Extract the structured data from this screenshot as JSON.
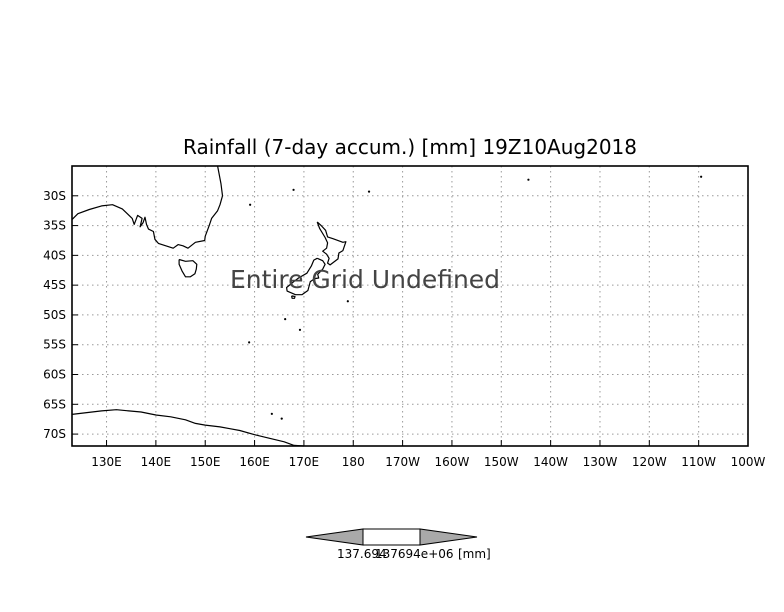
{
  "map": {
    "title": "Rainfall (7-day accum.) [mm] 19Z10Aug2018",
    "message": "Entire Grid Undefined",
    "projection": "latlon",
    "extent": {
      "lon_min": 123,
      "lon_max": 260,
      "lat_min": -72,
      "lat_max": -25
    },
    "grid": true,
    "lat_ticks": [
      {
        "value": -30,
        "label": "30S"
      },
      {
        "value": -35,
        "label": "35S"
      },
      {
        "value": -40,
        "label": "40S"
      },
      {
        "value": -45,
        "label": "45S"
      },
      {
        "value": -50,
        "label": "50S"
      },
      {
        "value": -55,
        "label": "55S"
      },
      {
        "value": -60,
        "label": "60S"
      },
      {
        "value": -65,
        "label": "65S"
      },
      {
        "value": -70,
        "label": "70S"
      }
    ],
    "lon_ticks": [
      {
        "value": 130,
        "label": "130E"
      },
      {
        "value": 140,
        "label": "140E"
      },
      {
        "value": 150,
        "label": "150E"
      },
      {
        "value": 160,
        "label": "160E"
      },
      {
        "value": 170,
        "label": "170E"
      },
      {
        "value": 180,
        "label": "180"
      },
      {
        "value": 190,
        "label": "170W"
      },
      {
        "value": 200,
        "label": "160W"
      },
      {
        "value": 210,
        "label": "150W"
      },
      {
        "value": 220,
        "label": "140W"
      },
      {
        "value": 230,
        "label": "130W"
      },
      {
        "value": 240,
        "label": "120W"
      },
      {
        "value": 250,
        "label": "110W"
      },
      {
        "value": 260,
        "label": "100W"
      }
    ],
    "colors": {
      "coast": "#000000",
      "grid": "#9a9a9a",
      "cb_fill": "#a9a9a9"
    }
  },
  "colorbar": {
    "label_left": "137.694",
    "label_mid": "137694e+06",
    "units": "[mm]"
  },
  "coastlines": {
    "australia": [
      [
        152.5,
        -25
      ],
      [
        153.2,
        -28
      ],
      [
        153.5,
        -30
      ],
      [
        153,
        -31.5
      ],
      [
        152.5,
        -32.5
      ],
      [
        151.3,
        -33.8
      ],
      [
        150.8,
        -35
      ],
      [
        150,
        -36.8
      ],
      [
        149.9,
        -37.5
      ],
      [
        148,
        -37.8
      ],
      [
        146.5,
        -38.8
      ],
      [
        145.5,
        -38.4
      ],
      [
        144.5,
        -38.2
      ],
      [
        143.5,
        -38.8
      ],
      [
        142,
        -38.4
      ],
      [
        140.5,
        -38
      ],
      [
        139.8,
        -37.3
      ],
      [
        139.5,
        -36
      ],
      [
        138.5,
        -35.6
      ],
      [
        138.1,
        -34.8
      ],
      [
        137.8,
        -33.6
      ],
      [
        137.4,
        -34.5
      ],
      [
        136.8,
        -35.2
      ],
      [
        137.2,
        -33.8
      ],
      [
        136.3,
        -33.3
      ],
      [
        135.6,
        -34.8
      ],
      [
        135.2,
        -33.8
      ],
      [
        134.2,
        -33
      ],
      [
        133.2,
        -32.2
      ],
      [
        131.2,
        -31.5
      ],
      [
        129,
        -31.7
      ],
      [
        126.5,
        -32.3
      ],
      [
        124.2,
        -33
      ],
      [
        123,
        -34
      ]
    ],
    "tasmania": [
      [
        144.7,
        -40.7
      ],
      [
        146,
        -41
      ],
      [
        147.5,
        -40.9
      ],
      [
        148.3,
        -41.5
      ],
      [
        148.2,
        -42.3
      ],
      [
        147.9,
        -43.1
      ],
      [
        147,
        -43.6
      ],
      [
        146,
        -43.6
      ],
      [
        145.3,
        -42.6
      ],
      [
        144.7,
        -41.5
      ],
      [
        144.7,
        -40.7
      ]
    ],
    "nz_north": [
      [
        172.7,
        -34.4
      ],
      [
        173.5,
        -35
      ],
      [
        174.4,
        -35.8
      ],
      [
        174.8,
        -36.9
      ],
      [
        175.9,
        -37.2
      ],
      [
        177.9,
        -37.8
      ],
      [
        178.5,
        -37.7
      ],
      [
        177.9,
        -39.2
      ],
      [
        177.1,
        -39.6
      ],
      [
        176.9,
        -40.6
      ],
      [
        175.3,
        -41.6
      ],
      [
        174.8,
        -41.3
      ],
      [
        175.1,
        -40.5
      ],
      [
        174.6,
        -39.8
      ],
      [
        173.8,
        -39.3
      ],
      [
        174.6,
        -38.8
      ],
      [
        174.8,
        -37.9
      ],
      [
        174.3,
        -37
      ],
      [
        173.2,
        -35.5
      ],
      [
        172.7,
        -34.4
      ]
    ],
    "nz_south": [
      [
        172.7,
        -40.5
      ],
      [
        173.8,
        -40.9
      ],
      [
        174.3,
        -41.5
      ],
      [
        173.8,
        -42.3
      ],
      [
        172.8,
        -43.2
      ],
      [
        173,
        -43.8
      ],
      [
        172.2,
        -43.9
      ],
      [
        171.3,
        -44.4
      ],
      [
        170.8,
        -45.9
      ],
      [
        169.6,
        -46.6
      ],
      [
        168.3,
        -46.6
      ],
      [
        166.6,
        -46
      ],
      [
        166.5,
        -45.4
      ],
      [
        167.8,
        -44.5
      ],
      [
        168.9,
        -43.8
      ],
      [
        170.6,
        -43
      ],
      [
        171.5,
        -41.8
      ],
      [
        172,
        -40.8
      ],
      [
        172.7,
        -40.5
      ]
    ],
    "stewart": [
      [
        167.5,
        -46.8
      ],
      [
        168.2,
        -46.9
      ],
      [
        168.1,
        -47.2
      ],
      [
        167.6,
        -47.2
      ],
      [
        167.5,
        -46.8
      ]
    ],
    "antarctica": [
      [
        123,
        -66.7
      ],
      [
        126,
        -66.4
      ],
      [
        129,
        -66.1
      ],
      [
        132,
        -65.9
      ],
      [
        134.5,
        -66.1
      ],
      [
        137,
        -66.3
      ],
      [
        140,
        -66.8
      ],
      [
        143,
        -67.1
      ],
      [
        146,
        -67.6
      ],
      [
        148,
        -68.2
      ],
      [
        150,
        -68.5
      ],
      [
        153,
        -68.8
      ],
      [
        155,
        -69.1
      ],
      [
        157,
        -69.4
      ],
      [
        160,
        -70.1
      ],
      [
        162,
        -70.5
      ],
      [
        164,
        -70.9
      ],
      [
        166,
        -71.3
      ],
      [
        168,
        -71.9
      ],
      [
        170,
        -72
      ]
    ],
    "islands": [
      [
        158.9,
        -54.6
      ],
      [
        166.2,
        -50.7
      ],
      [
        178.9,
        -47.7
      ],
      [
        169.2,
        -52.5
      ],
      [
        159.1,
        -31.5
      ],
      [
        167.9,
        -29
      ],
      [
        183.2,
        -29.3
      ],
      [
        215.5,
        -27.3
      ],
      [
        250.5,
        -26.8
      ],
      [
        163.5,
        -66.6
      ],
      [
        165.5,
        -67.4
      ]
    ]
  }
}
